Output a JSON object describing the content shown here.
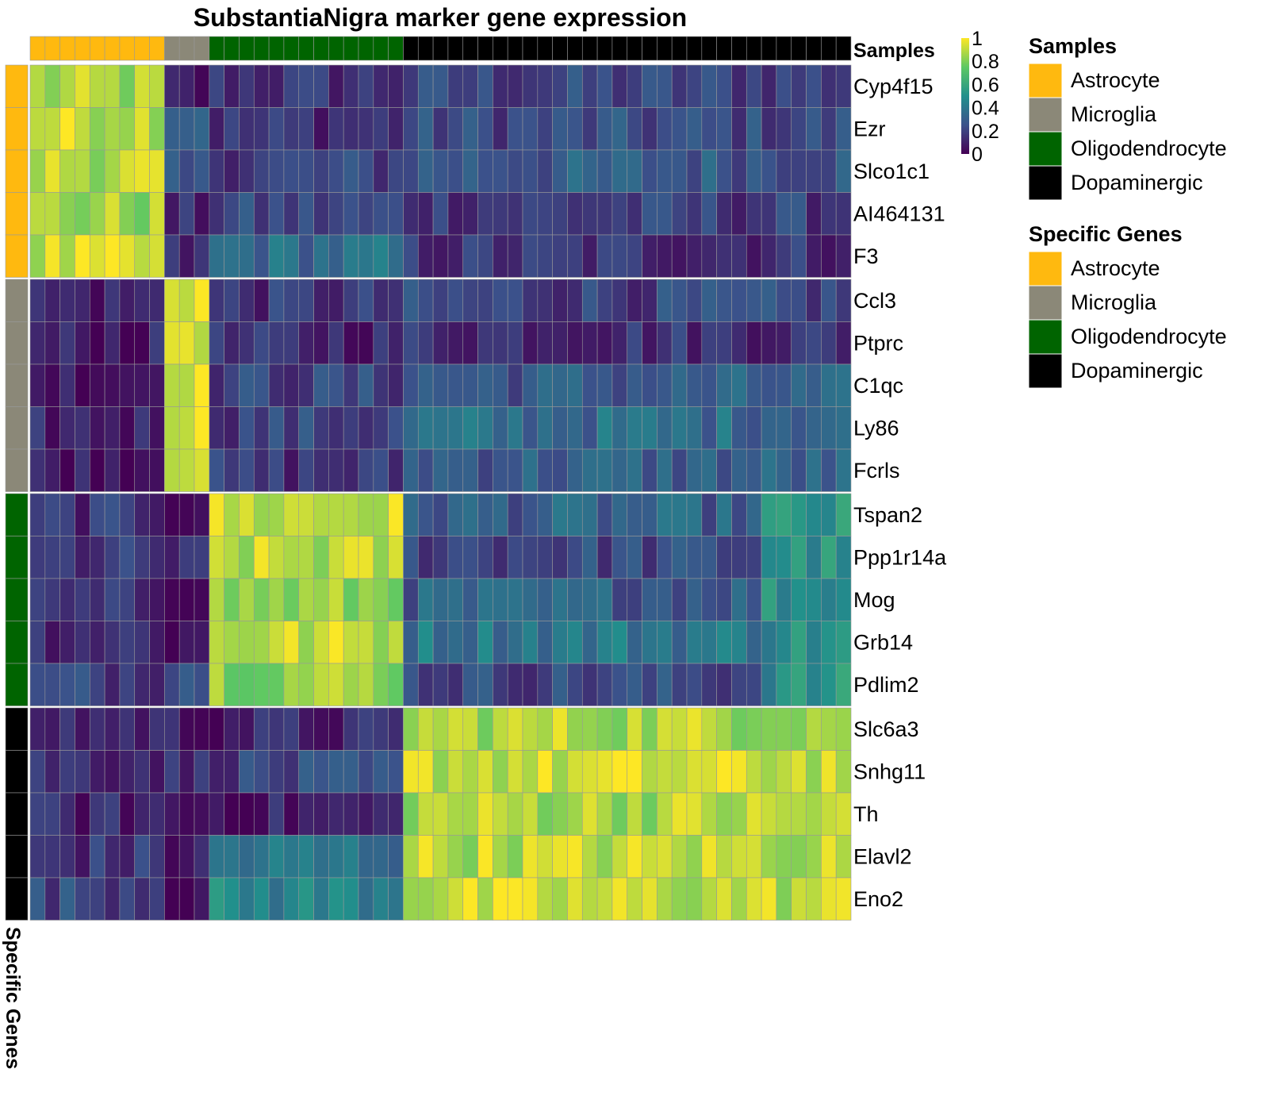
{
  "chart_data": {
    "type": "heatmap",
    "title": "SubstantiaNigra marker gene expression",
    "column_annotation": {
      "label": "Samples",
      "groups": [
        {
          "name": "Astrocyte",
          "count": 9
        },
        {
          "name": "Microglia",
          "count": 3
        },
        {
          "name": "Oligodendrocyte",
          "count": 13
        },
        {
          "name": "Dopaminergic",
          "count": 30
        }
      ]
    },
    "row_annotation": {
      "label": "Specific Genes",
      "groups": [
        {
          "name": "Astrocyte",
          "rows": [
            "Cyp4f15",
            "Ezr",
            "Slco1c1",
            "AI464131",
            "F3"
          ]
        },
        {
          "name": "Microglia",
          "rows": [
            "Ccl3",
            "Ptprc",
            "C1qc",
            "Ly86",
            "Fcrls"
          ]
        },
        {
          "name": "Oligodendrocyte",
          "rows": [
            "Tspan2",
            "Ppp1r14a",
            "Mog",
            "Grb14",
            "Pdlim2"
          ]
        },
        {
          "name": "Dopaminergic",
          "rows": [
            "Slc6a3",
            "Snhg11",
            "Th",
            "Elavl2",
            "Eno2"
          ]
        }
      ]
    },
    "group_colors": {
      "Astrocyte": "#FFB90F",
      "Microglia": "#8B8878",
      "Oligodendrocyte": "#006400",
      "Dopaminergic": "#000000"
    },
    "colorbar": {
      "range": [
        0,
        1
      ],
      "ticks": [
        "0",
        "0.2",
        "0.4",
        "0.6",
        "0.8",
        "1"
      ],
      "stops": [
        "#440154",
        "#3B528B",
        "#21908C",
        "#5DC863",
        "#FDE725"
      ]
    },
    "legends": [
      {
        "title": "Samples",
        "items": [
          "Astrocyte",
          "Microglia",
          "Oligodendrocyte",
          "Dopaminergic"
        ]
      },
      {
        "title": "Specific Genes",
        "items": [
          "Astrocyte",
          "Microglia",
          "Oligodendrocyte",
          "Dopaminergic"
        ]
      }
    ],
    "group_levels": {
      "Cyp4f15": [
        0.85,
        0.05,
        0.15,
        0.2
      ],
      "Ezr": [
        0.92,
        0.35,
        0.15,
        0.22
      ],
      "Slco1c1": [
        0.9,
        0.2,
        0.2,
        0.28
      ],
      "AI464131": [
        0.85,
        0.1,
        0.2,
        0.18
      ],
      "F3": [
        0.9,
        0.1,
        0.35,
        0.15
      ],
      "Ccl3": [
        0.1,
        0.98,
        0.15,
        0.2
      ],
      "Ptprc": [
        0.08,
        0.98,
        0.12,
        0.15
      ],
      "C1qc": [
        0.08,
        0.98,
        0.2,
        0.28
      ],
      "Ly86": [
        0.1,
        0.98,
        0.2,
        0.35
      ],
      "Fcrls": [
        0.08,
        0.98,
        0.15,
        0.3
      ],
      "Tspan2": [
        0.15,
        0.08,
        0.9,
        0.3
      ],
      "Ppp1r14a": [
        0.15,
        0.1,
        0.88,
        0.22
      ],
      "Mog": [
        0.12,
        0.1,
        0.82,
        0.3
      ],
      "Grb14": [
        0.15,
        0.05,
        0.9,
        0.4
      ],
      "Pdlim2": [
        0.2,
        0.3,
        0.85,
        0.22
      ],
      "Slc6a3": [
        0.12,
        0.08,
        0.1,
        0.88
      ],
      "Snhg11": [
        0.15,
        0.12,
        0.2,
        0.92
      ],
      "Th": [
        0.1,
        0.05,
        0.08,
        0.88
      ],
      "Elavl2": [
        0.15,
        0.08,
        0.38,
        0.9
      ],
      "Eno2": [
        0.22,
        0.05,
        0.45,
        0.9
      ]
    }
  }
}
